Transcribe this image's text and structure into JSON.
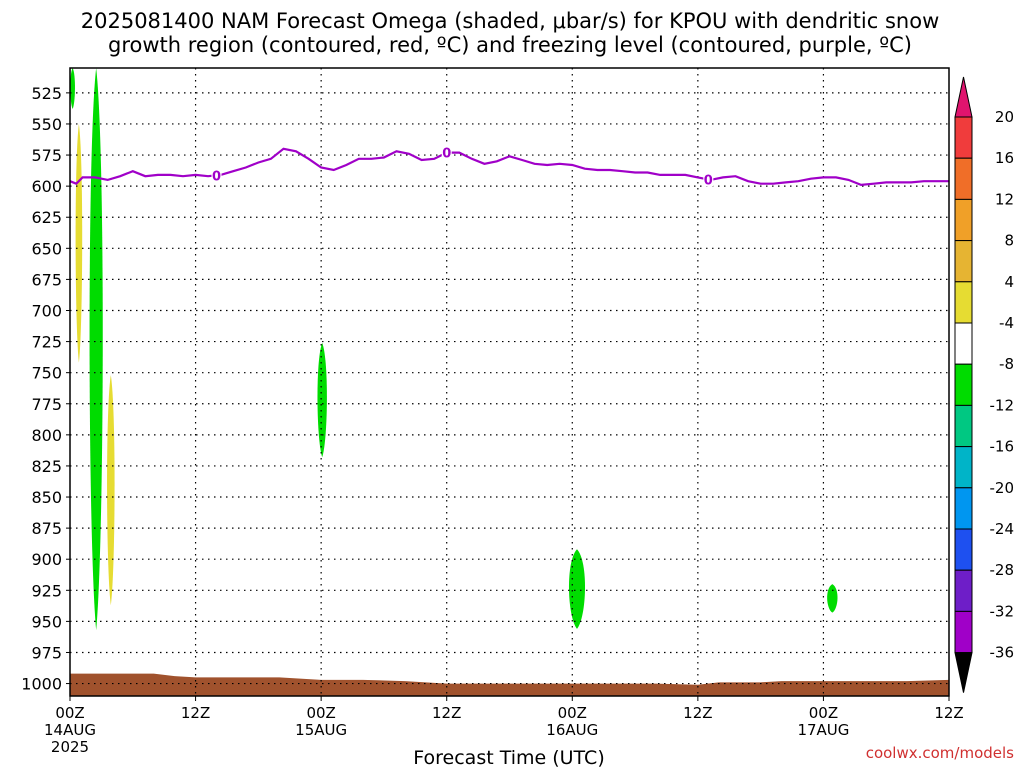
{
  "title_line1": "2025081400 NAM Forecast Omega (shaded, μbar/s) for KPOU with dendritic snow",
  "title_line2": "growth region (contoured, red, ºC) and freezing level (contoured, purple, ºC)",
  "credit": "coolwx.com/models",
  "chart_data": {
    "type": "contour",
    "title": "2025081400 NAM Forecast Omega (shaded, μbar/s) for KPOU with dendritic snow growth region (contoured, red, ºC) and freezing level (contoured, purple, ºC)",
    "xlabel": "Forecast Time (UTC)",
    "ylabel": "",
    "x_unit": "forecast hour",
    "xlim": [
      0,
      84
    ],
    "ylim": [
      1010,
      505
    ],
    "y_reversed": true,
    "grid": true,
    "x_ticks": [
      {
        "h": 0,
        "label": "00Z",
        "sub": "14AUG",
        "sub2": "2025"
      },
      {
        "h": 12,
        "label": "12Z",
        "sub": "",
        "sub2": ""
      },
      {
        "h": 24,
        "label": "00Z",
        "sub": "15AUG",
        "sub2": ""
      },
      {
        "h": 36,
        "label": "12Z",
        "sub": "",
        "sub2": ""
      },
      {
        "h": 48,
        "label": "00Z",
        "sub": "16AUG",
        "sub2": ""
      },
      {
        "h": 60,
        "label": "12Z",
        "sub": "",
        "sub2": ""
      },
      {
        "h": 72,
        "label": "00Z",
        "sub": "17AUG",
        "sub2": ""
      },
      {
        "h": 84,
        "label": "12Z",
        "sub": "",
        "sub2": ""
      }
    ],
    "y_ticks": [
      525,
      550,
      575,
      600,
      625,
      650,
      675,
      700,
      725,
      750,
      775,
      800,
      825,
      850,
      875,
      900,
      925,
      950,
      975,
      1000
    ],
    "colorbar": {
      "levels": [
        "20",
        "16",
        "12",
        "8",
        "4",
        "-4",
        "-8",
        "-12",
        "-16",
        "-20",
        "-24",
        "-28",
        "-32",
        "-36"
      ],
      "colors": [
        "#e0146e",
        "#f03c3c",
        "#f06e28",
        "#f0a028",
        "#e6b432",
        "#e6dc32",
        "#ffffff",
        "#00dc00",
        "#00c882",
        "#00b4c8",
        "#0096f0",
        "#1e50f0",
        "#6e1ec8",
        "#a000c8",
        "#a0a0a0",
        "#000000"
      ]
    },
    "freezing_level": {
      "label": "0",
      "label_at_hours": [
        14,
        36,
        61
      ],
      "points": [
        [
          0,
          596
        ],
        [
          0.6,
          598
        ],
        [
          1.2,
          593
        ],
        [
          2.4,
          593
        ],
        [
          3.6,
          595
        ],
        [
          4.8,
          592
        ],
        [
          6,
          588
        ],
        [
          7.2,
          592
        ],
        [
          8.4,
          591
        ],
        [
          9.6,
          591
        ],
        [
          10.8,
          592
        ],
        [
          12,
          591
        ],
        [
          13.2,
          592
        ],
        [
          14.4,
          591
        ],
        [
          15.6,
          588
        ],
        [
          16.8,
          585
        ],
        [
          18,
          581
        ],
        [
          19.2,
          578
        ],
        [
          20.4,
          570
        ],
        [
          21.6,
          572
        ],
        [
          22.8,
          578
        ],
        [
          24,
          585
        ],
        [
          25.2,
          587
        ],
        [
          26.4,
          583
        ],
        [
          27.6,
          578
        ],
        [
          28.8,
          578
        ],
        [
          30,
          577
        ],
        [
          31.2,
          572
        ],
        [
          32.4,
          574
        ],
        [
          33.6,
          579
        ],
        [
          34.8,
          578
        ],
        [
          36,
          573
        ],
        [
          37.2,
          573
        ],
        [
          38.4,
          578
        ],
        [
          39.6,
          582
        ],
        [
          40.8,
          580
        ],
        [
          42,
          576
        ],
        [
          43.2,
          579
        ],
        [
          44.4,
          582
        ],
        [
          45.6,
          583
        ],
        [
          46.8,
          582
        ],
        [
          48,
          583
        ],
        [
          49.2,
          586
        ],
        [
          50.4,
          587
        ],
        [
          51.6,
          587
        ],
        [
          52.8,
          588
        ],
        [
          54,
          589
        ],
        [
          55.2,
          589
        ],
        [
          56.4,
          591
        ],
        [
          57.6,
          591
        ],
        [
          58.8,
          591
        ],
        [
          60,
          593
        ],
        [
          61.2,
          595
        ],
        [
          62.4,
          593
        ],
        [
          63.6,
          592
        ],
        [
          64.8,
          596
        ],
        [
          66,
          598
        ],
        [
          67.2,
          598
        ],
        [
          68.4,
          597
        ],
        [
          69.6,
          596
        ],
        [
          70.8,
          594
        ],
        [
          72,
          593
        ],
        [
          73.2,
          593
        ],
        [
          74.4,
          595
        ],
        [
          75.6,
          599
        ],
        [
          76.8,
          598
        ],
        [
          78,
          597
        ],
        [
          79.2,
          597
        ],
        [
          80.4,
          597
        ],
        [
          81.6,
          596
        ],
        [
          82.8,
          596
        ],
        [
          84,
          596
        ]
      ]
    },
    "shaded_regions": [
      {
        "value_range": "-8 to -4",
        "color": "#00dc00",
        "hours": [
          0,
          0.5
        ],
        "pressure": [
          505,
          538
        ]
      },
      {
        "value_range": "-8 to -4",
        "color": "#00dc00",
        "hours": [
          1.8,
          3.2
        ],
        "pressure": [
          505,
          957
        ]
      },
      {
        "value_range": "-8 to -4",
        "color": "#00dc00",
        "hours": [
          23.6,
          24.6
        ],
        "pressure": [
          726,
          818
        ]
      },
      {
        "value_range": "-8 to -4",
        "color": "#00dc00",
        "hours": [
          47.6,
          49.3
        ],
        "pressure": [
          892,
          956
        ]
      },
      {
        "value_range": "-8 to -4",
        "color": "#00dc00",
        "hours": [
          72.3,
          73.4
        ],
        "pressure": [
          920,
          943
        ]
      },
      {
        "value_range": "4 to 8",
        "color": "#e6dc32",
        "hours": [
          0.5,
          1.2
        ],
        "pressure": [
          550,
          742
        ]
      },
      {
        "value_range": "4 to 8",
        "color": "#e6dc32",
        "hours": [
          3.5,
          4.3
        ],
        "pressure": [
          752,
          937
        ]
      }
    ],
    "terrain": {
      "color": "#a0522d",
      "points": [
        [
          0,
          992
        ],
        [
          4,
          992
        ],
        [
          8,
          992
        ],
        [
          10,
          994
        ],
        [
          12,
          995
        ],
        [
          16,
          995
        ],
        [
          20,
          995
        ],
        [
          24,
          997
        ],
        [
          28,
          997
        ],
        [
          32,
          998
        ],
        [
          36,
          1000
        ],
        [
          40,
          1000
        ],
        [
          44,
          1000
        ],
        [
          48,
          1000
        ],
        [
          52,
          1000
        ],
        [
          56,
          1000
        ],
        [
          60,
          1001
        ],
        [
          62,
          999
        ],
        [
          66,
          999
        ],
        [
          68,
          998
        ],
        [
          72,
          998
        ],
        [
          76,
          998
        ],
        [
          80,
          998
        ],
        [
          84,
          997
        ]
      ]
    }
  }
}
